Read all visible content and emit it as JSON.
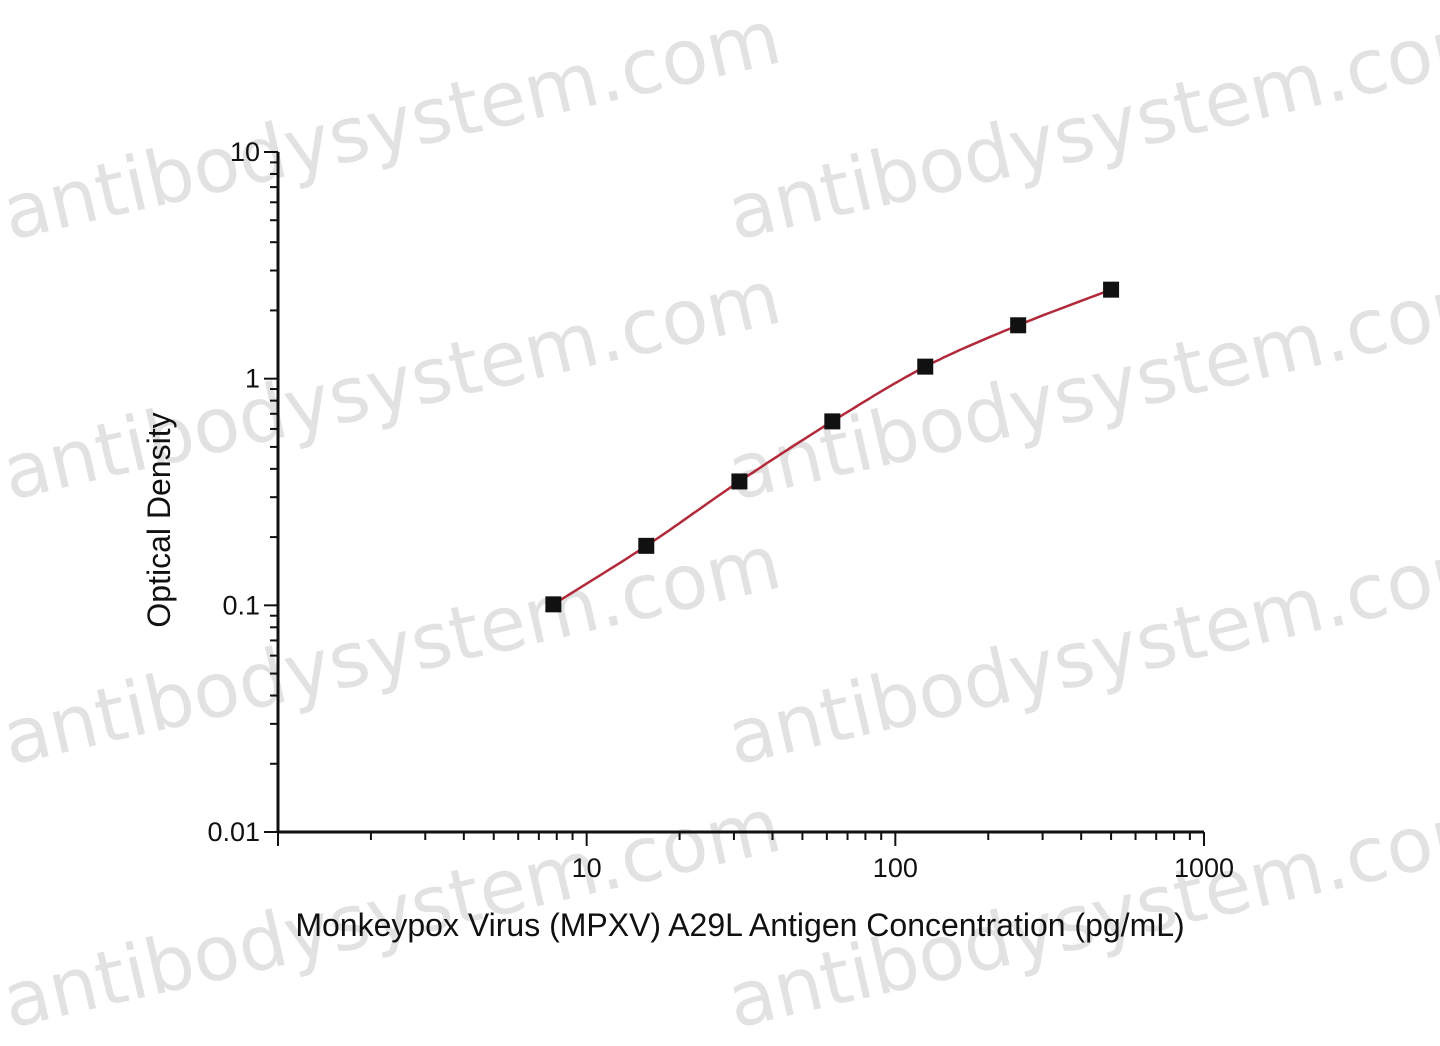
{
  "watermark": {
    "text": "antibodysystem.com"
  },
  "chart_data": {
    "type": "scatter",
    "xlabel": "Monkeypox Virus (MPXV) A29L Antigen Concentration (pg/mL)",
    "ylabel": "Optical Density",
    "xscale": "log",
    "yscale": "log",
    "xlim": [
      1,
      1000
    ],
    "ylim": [
      0.01,
      10
    ],
    "xticks": [
      {
        "value": 10,
        "label": "10"
      },
      {
        "value": 100,
        "label": "100"
      },
      {
        "value": 1000,
        "label": "1000"
      }
    ],
    "yticks": [
      {
        "value": 0.01,
        "label": "0.01"
      },
      {
        "value": 0.1,
        "label": "0.1"
      },
      {
        "value": 1,
        "label": "1"
      },
      {
        "value": 10,
        "label": "10"
      }
    ],
    "grid": false,
    "legend": "none",
    "series": [
      {
        "x": [
          7.8,
          15.6,
          31.25,
          62.5,
          125,
          250,
          500
        ],
        "y": [
          0.101,
          0.183,
          0.352,
          0.648,
          1.13,
          1.72,
          2.47
        ],
        "marker_color": "#111111",
        "line_color": "#b22a3a"
      }
    ]
  }
}
